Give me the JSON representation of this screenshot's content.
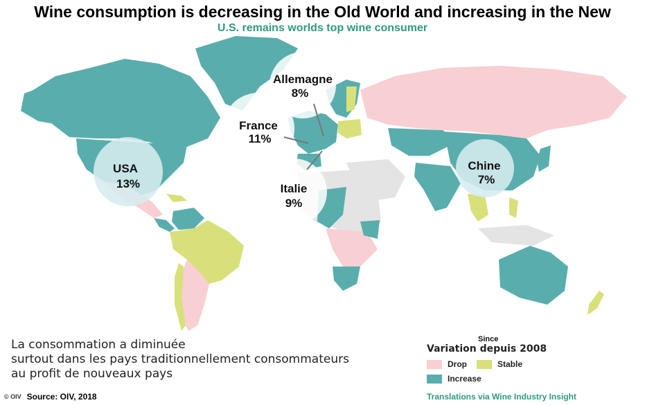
{
  "title": "Wine consumption is decreasing in the Old World and increasing in the New",
  "subtitle": "U.S. remains worlds top wine consumer",
  "colors": {
    "drop": "#f8cfd3",
    "stable": "#d8e07a",
    "increase": "#5aadad",
    "no_data": "#e4e4e4",
    "bubble": "#d6ecef",
    "title_accent": "#2e9a7c"
  },
  "bubbles": [
    {
      "country": "USA",
      "share": "13%"
    },
    {
      "country": "France",
      "share": "11%"
    },
    {
      "country": "Allemagne",
      "share": "8%"
    },
    {
      "country": "Italie",
      "share": "9%"
    },
    {
      "country": "Chine",
      "share": "7%"
    }
  ],
  "caption": [
    "La consommation a diminuée",
    "surtout dans les pays traditionnellement consommateurs",
    "au profit de nouveaux pays"
  ],
  "legend": {
    "since": "Since",
    "title": "Variation depuis 2008",
    "drop": "Drop",
    "stable": "Stable",
    "increase": "Increase"
  },
  "source": {
    "logo": "© OIV",
    "text": "Source: OIV, 2018"
  },
  "translations": "Translations via Wine Industry Insight"
}
